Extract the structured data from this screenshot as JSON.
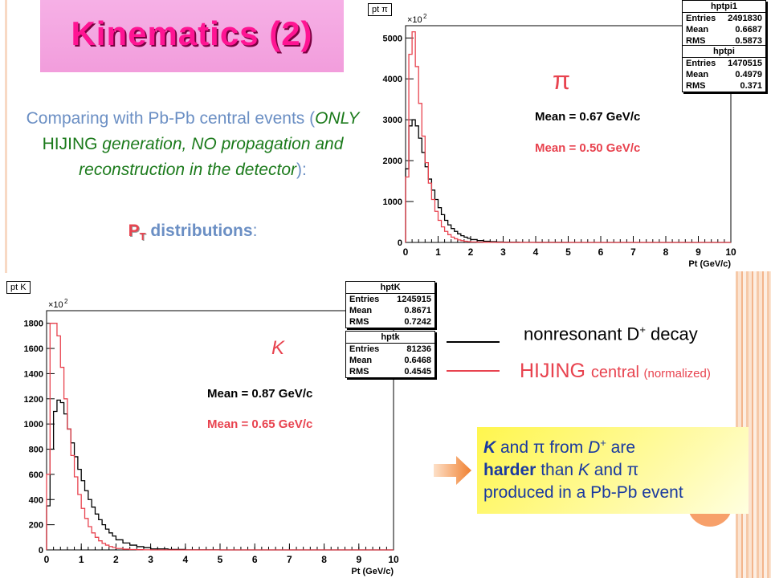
{
  "title": "Kinematics (2)",
  "intro": {
    "p1": "Comparing with Pb-Pb central events (",
    "only": "ONLY",
    "hijing": " HIJING ",
    "generation": "generation,",
    "noprop": "NO propagation and reconstruction in the detector",
    "p2": "):"
  },
  "pt_line": {
    "pt": "P",
    "pt_sub": "T",
    "distributions": " distributions",
    "colon": ":"
  },
  "legend": {
    "black": "nonresonant D",
    "black_sup": "+",
    "black_tail": " decay",
    "red": "HIJING ",
    "red_central": "central ",
    "red_small": "(normalized)"
  },
  "conclusion": {
    "k1": "K",
    "and1": " and ",
    "pi1": "π",
    "from": " from ",
    "d": "D",
    "d_sup": "+",
    "are": " are",
    "harder": "harder",
    "than": " than ",
    "k2": "K",
    "and2": " and ",
    "pi2": "π",
    "produced": "produced in a Pb-Pb event"
  },
  "colors": {
    "black_series": "#000000",
    "red_series": "#e8434f",
    "title": "#ff1493",
    "accent_blue": "#6b8fc4"
  },
  "chart_data": [
    {
      "type": "line",
      "histogram_label": "pt π",
      "particle_label": "π",
      "xlabel": "Pt (GeV/c)",
      "multiplier_label": "×10",
      "multiplier_exp": "2",
      "xlim": [
        0,
        10
      ],
      "ylim": [
        0,
        5300
      ],
      "xticks": [
        0,
        1,
        2,
        3,
        4,
        5,
        6,
        7,
        8,
        9,
        10
      ],
      "yticks": [
        0,
        1000,
        2000,
        3000,
        4000,
        5000
      ],
      "stats": [
        {
          "name": "hptpi1",
          "entries_label": "Entries",
          "entries": "2491830",
          "mean_label": "Mean",
          "mean": "0.6687",
          "rms_label": "RMS",
          "rms": "0.5873"
        },
        {
          "name": "hptpi",
          "entries_label": "Entries",
          "entries": "1470515",
          "mean_label": "Mean",
          "mean": "0.4979",
          "rms_label": "RMS",
          "rms": "0.371"
        }
      ],
      "mean_black": "Mean = 0.67 GeV/c",
      "mean_red": "Mean = 0.50 GeV/c",
      "series": [
        {
          "color": "#000000",
          "x": [
            0.1,
            0.2,
            0.3,
            0.4,
            0.5,
            0.6,
            0.7,
            0.8,
            0.9,
            1.0,
            1.1,
            1.2,
            1.3,
            1.4,
            1.5,
            1.6,
            1.7,
            1.8,
            1.9,
            2.0,
            2.2,
            2.4,
            2.6,
            2.8,
            3.0,
            3.5,
            4.0,
            5.0,
            6.0,
            10.0
          ],
          "y": [
            1800,
            2850,
            3000,
            2850,
            2550,
            2200,
            1850,
            1550,
            1280,
            1050,
            850,
            680,
            540,
            430,
            340,
            270,
            210,
            165,
            130,
            100,
            70,
            45,
            30,
            20,
            12,
            6,
            3,
            1,
            0,
            0
          ]
        },
        {
          "color": "#e8434f",
          "x": [
            0.1,
            0.2,
            0.3,
            0.4,
            0.5,
            0.6,
            0.7,
            0.8,
            0.9,
            1.0,
            1.1,
            1.2,
            1.3,
            1.4,
            1.5,
            1.6,
            1.7,
            1.8,
            1.9,
            2.0,
            2.2,
            2.4,
            2.6,
            2.8,
            3.0,
            3.5,
            4.0,
            5.0,
            10.0
          ],
          "y": [
            1600,
            4600,
            5150,
            4300,
            3400,
            2600,
            1950,
            1450,
            1050,
            760,
            540,
            380,
            270,
            190,
            130,
            90,
            62,
            43,
            30,
            20,
            12,
            7,
            4,
            2,
            1,
            0,
            0,
            0,
            0
          ]
        }
      ]
    },
    {
      "type": "line",
      "histogram_label": "pt K",
      "particle_label": "K",
      "xlabel": "Pt (GeV/c)",
      "multiplier_label": "×10",
      "multiplier_exp": "2",
      "xlim": [
        0,
        10
      ],
      "ylim": [
        0,
        1900
      ],
      "xticks": [
        0,
        1,
        2,
        3,
        4,
        5,
        6,
        7,
        8,
        9,
        10
      ],
      "yticks": [
        0,
        200,
        400,
        600,
        800,
        1000,
        1200,
        1400,
        1600,
        1800
      ],
      "stats": [
        {
          "name": "hptK",
          "entries_label": "Entries",
          "entries": "1245915",
          "mean_label": "Mean",
          "mean": "0.8671",
          "rms_label": "RMS",
          "rms": "0.7242"
        },
        {
          "name": "hptk",
          "entries_label": "Entries",
          "entries": "81236",
          "mean_label": "Mean",
          "mean": "0.6468",
          "rms_label": "RMS",
          "rms": "0.4545"
        }
      ],
      "mean_black": "Mean = 0.87 GeV/c",
      "mean_red": "Mean = 0.65 GeV/c",
      "series": [
        {
          "color": "#000000",
          "x": [
            0.1,
            0.2,
            0.3,
            0.4,
            0.5,
            0.6,
            0.7,
            0.8,
            0.9,
            1.0,
            1.1,
            1.2,
            1.3,
            1.4,
            1.5,
            1.6,
            1.7,
            1.8,
            1.9,
            2.0,
            2.2,
            2.4,
            2.6,
            2.8,
            3.0,
            3.5,
            4.0,
            5.0,
            10.0
          ],
          "y": [
            350,
            800,
            1100,
            1190,
            1170,
            1080,
            960,
            850,
            740,
            640,
            550,
            470,
            400,
            340,
            285,
            240,
            200,
            165,
            135,
            110,
            80,
            55,
            38,
            26,
            18,
            8,
            4,
            1,
            0
          ]
        },
        {
          "color": "#e8434f",
          "x": [
            0.1,
            0.2,
            0.3,
            0.4,
            0.5,
            0.6,
            0.7,
            0.8,
            0.9,
            1.0,
            1.1,
            1.2,
            1.3,
            1.4,
            1.5,
            1.6,
            1.7,
            1.8,
            1.9,
            2.0,
            2.2,
            2.4,
            2.6,
            2.8,
            3.0,
            3.5,
            4.0,
            10.0
          ],
          "y": [
            600,
            1800,
            1800,
            1700,
            1450,
            1200,
            960,
            750,
            580,
            440,
            330,
            250,
            185,
            135,
            100,
            72,
            52,
            38,
            27,
            19,
            11,
            6,
            3,
            2,
            1,
            0,
            0,
            0
          ]
        }
      ]
    }
  ]
}
